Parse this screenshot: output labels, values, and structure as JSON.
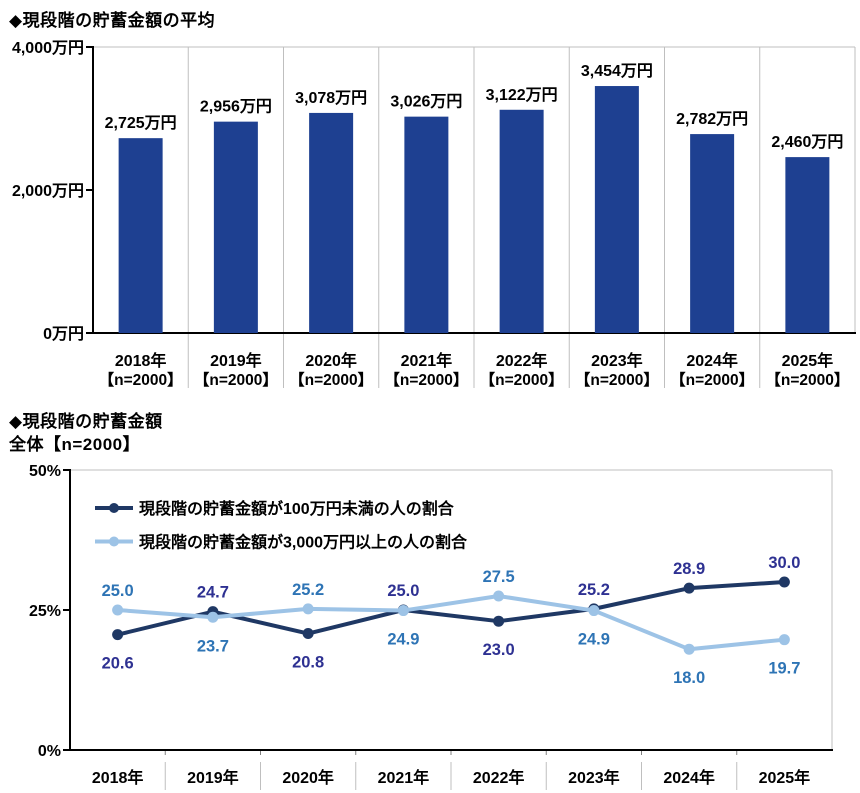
{
  "colors": {
    "bar_fill": "#1e4091",
    "axis": "#000000",
    "grid": "#bfbfbf",
    "tick_minor": "#808080",
    "title_text": "#000000",
    "bar_label_text": "#000000"
  },
  "chart_data": [
    {
      "type": "bar",
      "title": "◆現段階の貯蓄金額の平均",
      "unit": "万円",
      "categories": [
        "2018年",
        "2019年",
        "2020年",
        "2021年",
        "2022年",
        "2023年",
        "2024年",
        "2025年"
      ],
      "category_sublabel": "【n=2000】",
      "values": [
        2725,
        2956,
        3078,
        3026,
        3122,
        3454,
        2782,
        2460
      ],
      "data_labels": [
        "2,725万円",
        "2,956万円",
        "3,078万円",
        "3,026万円",
        "3,122万円",
        "3,454万円",
        "2,782万円",
        "2,460万円"
      ],
      "ylim": [
        0,
        4000
      ],
      "y_ticks": [
        {
          "v": 0,
          "label": "0万円"
        },
        {
          "v": 2000,
          "label": "2,000万円"
        },
        {
          "v": 4000,
          "label": "4,000万円"
        }
      ],
      "grid": "vertical-category-separators",
      "legend": "none"
    },
    {
      "type": "line",
      "title": "◆現段階の貯蓄金額",
      "subtitle": "全体【n=2000】",
      "categories": [
        "2018年",
        "2019年",
        "2020年",
        "2021年",
        "2022年",
        "2023年",
        "2024年",
        "2025年"
      ],
      "ylim": [
        0,
        50
      ],
      "y_ticks": [
        {
          "v": 0,
          "label": "0%"
        },
        {
          "v": 25,
          "label": "25%"
        },
        {
          "v": 50,
          "label": "50%"
        }
      ],
      "legend_position": "top-left-inside",
      "series": [
        {
          "name": "現段階の貯蓄金額が100万円未満の人の割合",
          "color": "#1f3864",
          "label_color": "#2e3192",
          "values": [
            20.6,
            24.7,
            20.8,
            25.0,
            23.0,
            25.2,
            28.9,
            30.0
          ],
          "label_side": [
            "below",
            "above",
            "below",
            "above",
            "below",
            "above",
            "above",
            "above"
          ]
        },
        {
          "name": "現段階の貯蓄金額が3,000万円以上の人の割合",
          "color": "#9dc3e6",
          "label_color": "#2e74b5",
          "values": [
            25.0,
            23.7,
            25.2,
            24.9,
            27.5,
            24.9,
            18.0,
            19.7
          ],
          "label_side": [
            "above",
            "below",
            "above",
            "below",
            "above",
            "below",
            "below",
            "below"
          ]
        }
      ]
    }
  ]
}
